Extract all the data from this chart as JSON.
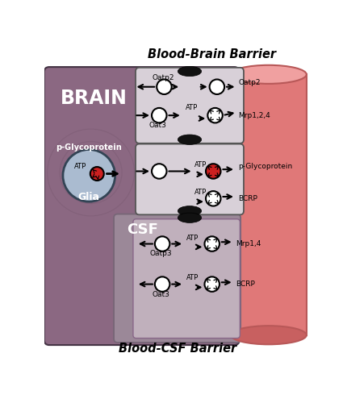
{
  "title_top": "Blood-Brain Barrier",
  "title_bottom": "Blood-CSF Barrier",
  "brain_label": "BRAIN",
  "csf_label": "CSF",
  "glia_label": "Glia",
  "pglyco_brain_label": "p-Glycoprotein",
  "pglyco_bbb_label": "p-Glycoprotein",
  "brain_bg": "#8B6882",
  "csf_bg": "#A08898",
  "cell_bg": "#D8D0D8",
  "cell_inner_bg": "#C8C0C8",
  "blood_bg": "#E07878",
  "blood_edge": "#B85858",
  "glia_bg": "#AABBD0",
  "white": "#FFFFFF",
  "red": "#CC2020",
  "black": "#111111",
  "figsize": [
    4.3,
    5.0
  ],
  "dpi": 100
}
